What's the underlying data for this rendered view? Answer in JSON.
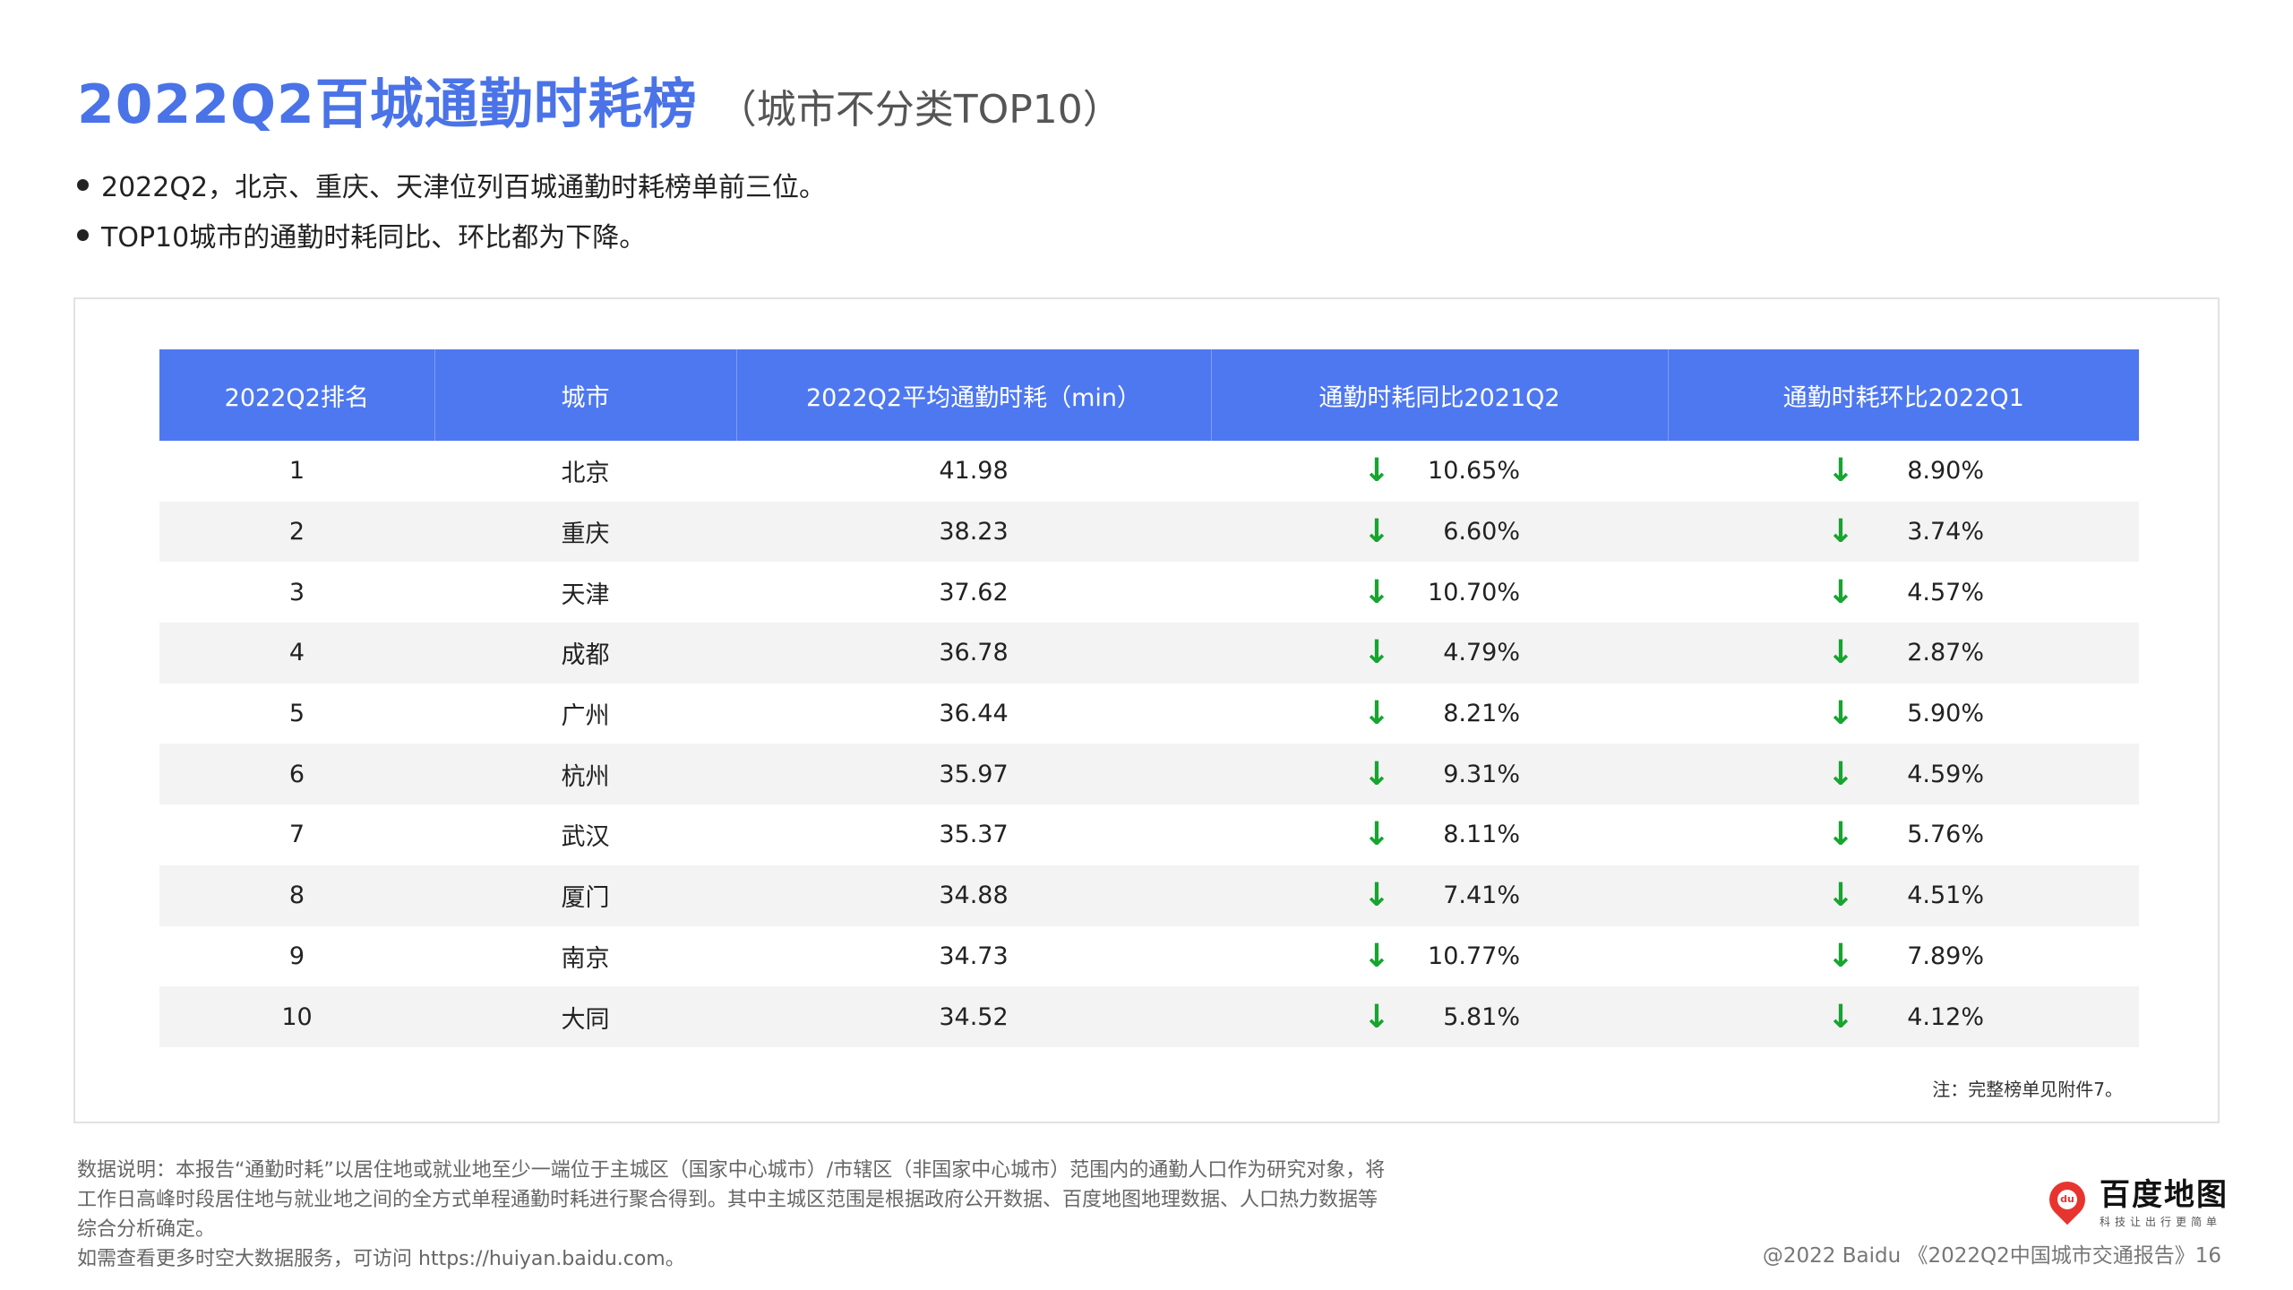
{
  "header": {
    "title": "2022Q2百城通勤时耗榜",
    "subtitle": "（城市不分类TOP10）"
  },
  "bullets": [
    "2022Q2，北京、重庆、天津位列百城通勤时耗榜单前三位。",
    "TOP10城市的通勤时耗同比、环比都为下降。"
  ],
  "table": {
    "columns": [
      "2022Q2排名",
      "城市",
      "2022Q2平均通勤时耗（min）",
      "通勤时耗同比2021Q2",
      "通勤时耗环比2022Q1"
    ],
    "rows": [
      {
        "rank": "1",
        "city": "北京",
        "avg": "41.98",
        "yoy": "10.65%",
        "qoq": "8.90%"
      },
      {
        "rank": "2",
        "city": "重庆",
        "avg": "38.23",
        "yoy": "6.60%",
        "qoq": "3.74%"
      },
      {
        "rank": "3",
        "city": "天津",
        "avg": "37.62",
        "yoy": "10.70%",
        "qoq": "4.57%"
      },
      {
        "rank": "4",
        "city": "成都",
        "avg": "36.78",
        "yoy": "4.79%",
        "qoq": "2.87%"
      },
      {
        "rank": "5",
        "city": "广州",
        "avg": "36.44",
        "yoy": "8.21%",
        "qoq": "5.90%"
      },
      {
        "rank": "6",
        "city": "杭州",
        "avg": "35.97",
        "yoy": "9.31%",
        "qoq": "4.59%"
      },
      {
        "rank": "7",
        "city": "武汉",
        "avg": "35.37",
        "yoy": "8.11%",
        "qoq": "5.76%"
      },
      {
        "rank": "8",
        "city": "厦门",
        "avg": "34.88",
        "yoy": "7.41%",
        "qoq": "4.51%"
      },
      {
        "rank": "9",
        "city": "南京",
        "avg": "34.73",
        "yoy": "10.77%",
        "qoq": "7.89%"
      },
      {
        "rank": "10",
        "city": "大同",
        "avg": "34.52",
        "yoy": "5.81%",
        "qoq": "4.12%"
      }
    ],
    "trend_arrow": "↓",
    "note": "注：完整榜单见附件7。"
  },
  "footer": {
    "description": [
      "数据说明：本报告“通勤时耗”以居住地或就业地至少一端位于主城区（国家中心城市）/市辖区（非国家中心城市）范围内的通勤人口作为研究对象，将",
      "工作日高峰时段居住地与就业地之间的全方式单程通勤时耗进行聚合得到。其中主城区范围是根据政府公开数据、百度地图地理数据、人口热力数据等",
      "综合分析确定。",
      "如需查看更多时空大数据服务，可访问 https://huiyan.baidu.com。"
    ],
    "logo_mark": "du",
    "logo_text": "百度地图",
    "logo_slogan": "科技让出行更简单",
    "credit": "@2022 Baidu 《2022Q2中国城市交通报告》16"
  },
  "colors": {
    "title": "#4a73e8",
    "header_bg": "#4e78f0",
    "arrow": "#17a42f",
    "stripe": "#f3f3f3"
  }
}
